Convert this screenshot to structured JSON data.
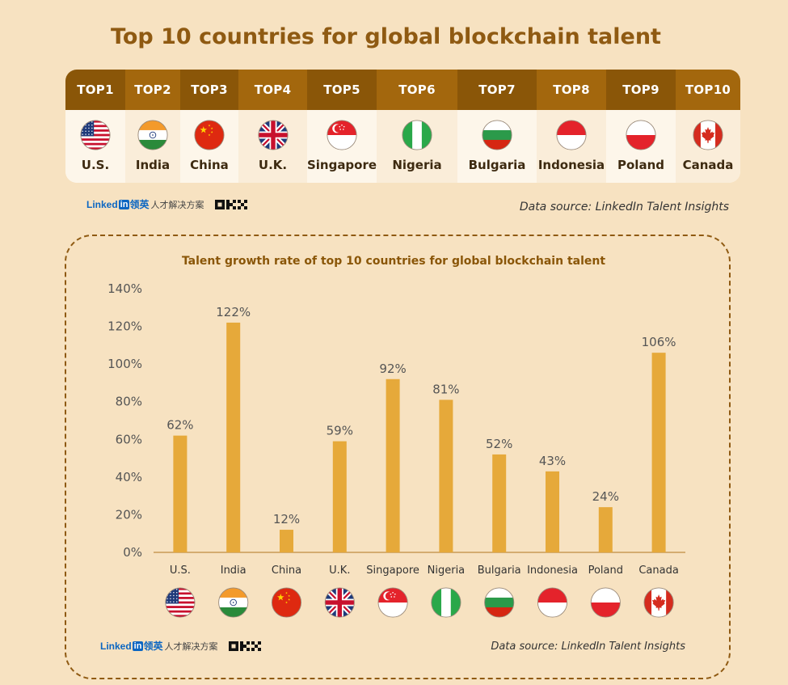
{
  "title": "Top 10 countries for global blockchain talent",
  "ranking": [
    {
      "rank": "TOP1",
      "country": "U.S.",
      "flag": "us-flag"
    },
    {
      "rank": "TOP2",
      "country": "India",
      "flag": "india-flag"
    },
    {
      "rank": "TOP3",
      "country": "China",
      "flag": "china-flag"
    },
    {
      "rank": "TOP4",
      "country": "U.K.",
      "flag": "uk-flag"
    },
    {
      "rank": "TOP5",
      "country": "Singapore",
      "flag": "singapore-flag"
    },
    {
      "rank": "TOP6",
      "country": "Nigeria",
      "flag": "nigeria-flag"
    },
    {
      "rank": "TOP7",
      "country": "Bulgaria",
      "flag": "bulgaria-flag"
    },
    {
      "rank": "TOP8",
      "country": "Indonesia",
      "flag": "indonesia-flag"
    },
    {
      "rank": "TOP9",
      "country": "Poland",
      "flag": "poland-flag"
    },
    {
      "rank": "TOP10",
      "country": "Canada",
      "flag": "canada-flag"
    }
  ],
  "brand": {
    "linkedin": "Linked",
    "linkedin_box": "in",
    "linkedin_cn": "领英",
    "cn_text": "人才解决方案",
    "okx": "OKX"
  },
  "source_text": "Data source: LinkedIn Talent Insights",
  "colors": {
    "bar": "#e6a93a",
    "header_dark": "#8a5608",
    "header_light": "#a3670d",
    "title": "#8f5a12"
  },
  "chart_data": {
    "type": "bar",
    "title": "Talent growth rate of top 10 countries for global blockchain talent",
    "categories": [
      "U.S.",
      "India",
      "China",
      "U.K.",
      "Singapore",
      "Nigeria",
      "Bulgaria",
      "Indonesia",
      "Poland",
      "Canada"
    ],
    "values": [
      62,
      122,
      12,
      59,
      92,
      81,
      52,
      43,
      24,
      106
    ],
    "value_labels": [
      "62%",
      "122%",
      "12%",
      "59%",
      "92%",
      "81%",
      "52%",
      "43%",
      "24%",
      "106%"
    ],
    "yticks": [
      "0%",
      "20%",
      "40%",
      "60%",
      "80%",
      "100%",
      "120%",
      "140%"
    ],
    "ylim": [
      0,
      140
    ],
    "xlabel": "",
    "ylabel": "",
    "grid": false,
    "legend": "none"
  }
}
